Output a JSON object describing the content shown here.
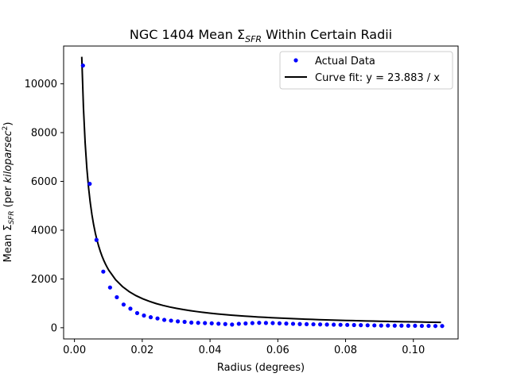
{
  "chart_data": {
    "type": "scatter",
    "title_parts": [
      "NGC 1404 Mean Σ",
      "SFR",
      " Within Certain Radii"
    ],
    "xlabel": "Radius (degrees)",
    "ylabel_parts": [
      "Mean Σ",
      "SFR",
      " (per ",
      "kiloparsec",
      "2",
      ")"
    ],
    "xlim": [
      -0.0032,
      0.1132
    ],
    "ylim": [
      -460,
      11550
    ],
    "xticks": [
      0.0,
      0.02,
      0.04,
      0.06,
      0.08,
      0.1
    ],
    "xtick_labels": [
      "0.00",
      "0.02",
      "0.04",
      "0.06",
      "0.08",
      "0.10"
    ],
    "yticks": [
      0,
      2000,
      4000,
      6000,
      8000,
      10000
    ],
    "ytick_labels": [
      "0",
      "2000",
      "4000",
      "6000",
      "8000",
      "10000"
    ],
    "legend_position": "upper-right",
    "series": [
      {
        "name": "Actual Data",
        "style": "points",
        "color": "#0000ff",
        "x": [
          0.0025,
          0.0045,
          0.0065,
          0.0085,
          0.0105,
          0.0125,
          0.0145,
          0.0165,
          0.0185,
          0.0205,
          0.0225,
          0.0245,
          0.0265,
          0.0285,
          0.0305,
          0.0325,
          0.0345,
          0.0365,
          0.0385,
          0.0405,
          0.0425,
          0.0445,
          0.0465,
          0.0485,
          0.0505,
          0.0525,
          0.0545,
          0.0565,
          0.0585,
          0.0605,
          0.0625,
          0.0645,
          0.0665,
          0.0685,
          0.0705,
          0.0725,
          0.0745,
          0.0765,
          0.0785,
          0.0805,
          0.0825,
          0.0845,
          0.0865,
          0.0885,
          0.0905,
          0.0925,
          0.0945,
          0.0965,
          0.0985,
          0.1005,
          0.1025,
          0.1045,
          0.1065,
          0.1085
        ],
        "y": [
          10750,
          5900,
          3600,
          2300,
          1650,
          1250,
          950,
          780,
          600,
          500,
          430,
          380,
          320,
          290,
          260,
          240,
          210,
          200,
          190,
          180,
          165,
          150,
          130,
          160,
          175,
          190,
          200,
          195,
          190,
          180,
          170,
          160,
          150,
          145,
          140,
          135,
          130,
          125,
          120,
          115,
          110,
          105,
          100,
          95,
          90,
          90,
          85,
          85,
          80,
          80,
          75,
          75,
          70,
          70
        ]
      },
      {
        "name": "Curve fit: y = 23.883 / x",
        "style": "line",
        "color": "#000000",
        "k": 23.883,
        "x_range": [
          0.00215,
          0.1085
        ]
      }
    ]
  }
}
